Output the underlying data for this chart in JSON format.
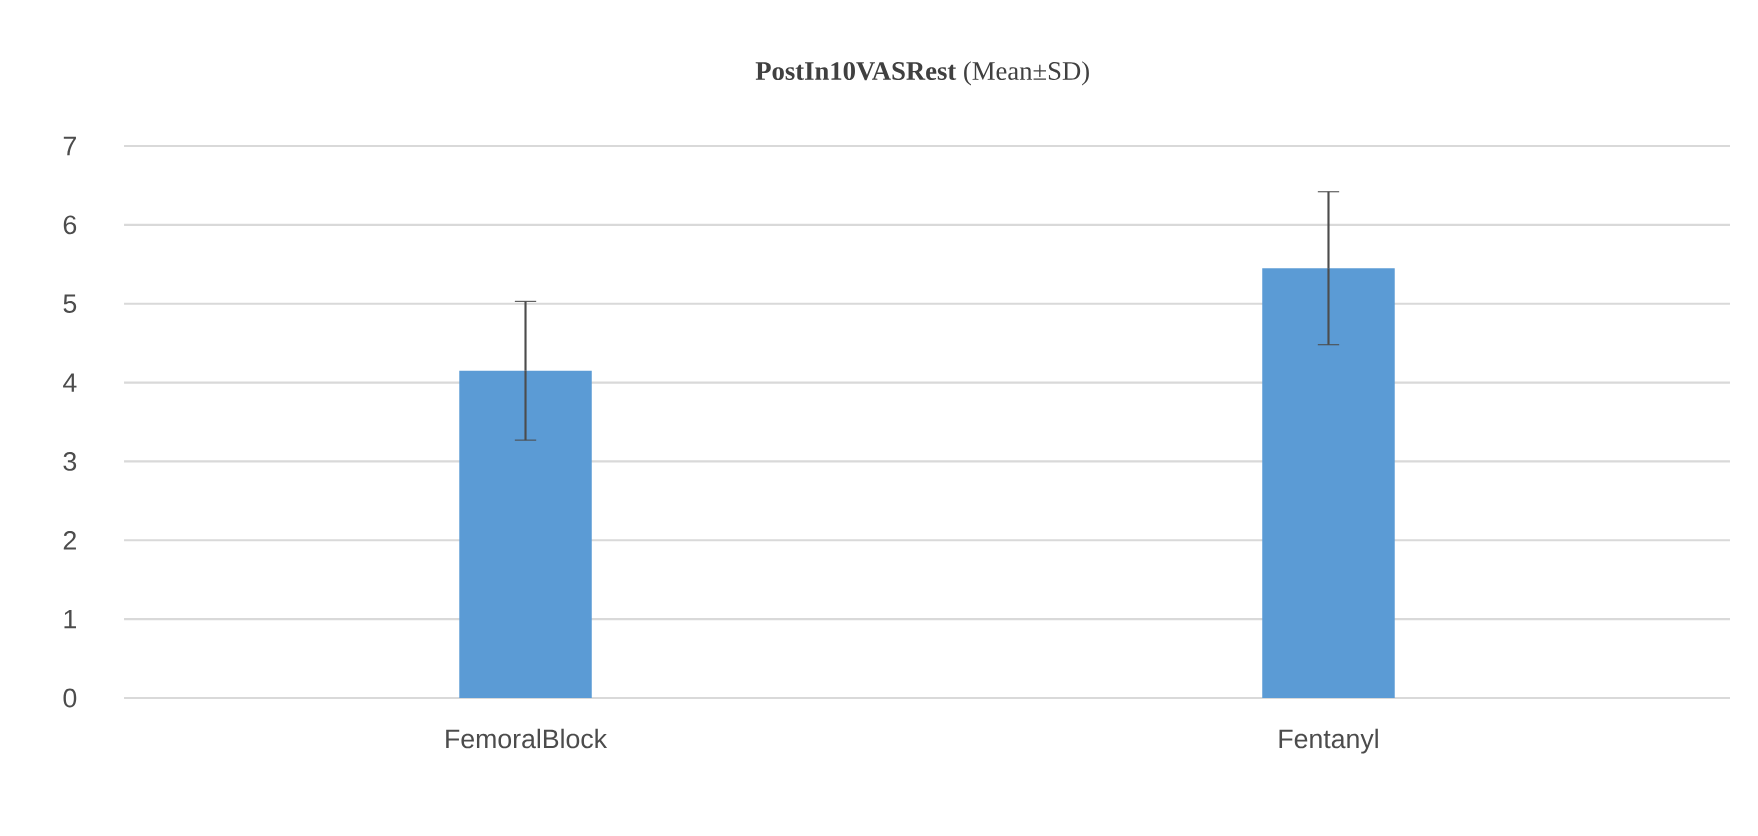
{
  "chart_data": {
    "type": "bar",
    "title": "**PostIn10VASRest** (Mean±SD)",
    "categories": [
      "FemoralBlock",
      "Fentanyl"
    ],
    "values": [
      4.15,
      5.45
    ],
    "errors": [
      0.88,
      0.97
    ],
    "color": "#5b9bd5",
    "ylim": [
      0,
      7
    ],
    "yticks": [
      0,
      1,
      2,
      3,
      4,
      5,
      6,
      7
    ],
    "grid": "y"
  }
}
